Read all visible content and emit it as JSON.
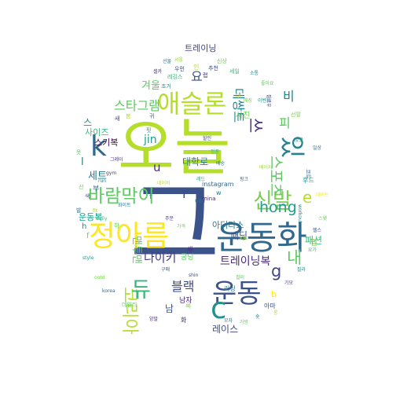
{
  "word_cloud": {
    "words": [
      {
        "text": "오늘",
        "color": "#b5de2b"
      },
      {
        "text": "그",
        "color": "#3b528b"
      },
      {
        "text": "운동화",
        "color": "#31688e"
      },
      {
        "text": "정아름",
        "color": "#fde725"
      },
      {
        "text": "운동",
        "color": "#3b528b"
      },
      {
        "text": "애슬론",
        "color": "#b5de2b"
      },
      {
        "text": "신발",
        "color": "#7ad151"
      },
      {
        "text": "바람막이",
        "color": "#5ec962"
      },
      {
        "text": "있",
        "color": "#26828e"
      },
      {
        "text": "k",
        "color": "#31688e"
      },
      {
        "text": "스포츠",
        "color": "#5ec962"
      },
      {
        "text": "블랙",
        "color": "#3e4989"
      },
      {
        "text": "코리아",
        "color": "#b5de2b"
      },
      {
        "text": "듀",
        "color": "#35b779"
      },
      {
        "text": "스타그램",
        "color": "#5ec962"
      },
      {
        "text": "데쌍트",
        "color": "#26828e"
      },
      {
        "text": "hong",
        "color": "#1f9e89"
      },
      {
        "text": "나이키",
        "color": "#443983"
      },
      {
        "text": "트레이닝복",
        "color": "#472d7b"
      },
      {
        "text": "c",
        "color": "#21918c"
      },
      {
        "text": "쓰",
        "color": "#46327e"
      },
      {
        "text": "내",
        "color": "#5ec962"
      },
      {
        "text": "g",
        "color": "#414487"
      },
      {
        "text": "r",
        "color": "#3e4989"
      },
      {
        "text": "e",
        "color": "#b5de2b"
      },
      {
        "text": "피",
        "color": "#5ec962"
      },
      {
        "text": "비",
        "color": "#26828e"
      },
      {
        "text": "요",
        "color": "#3b528b"
      },
      {
        "text": "jin",
        "color": "#1f9e89"
      },
      {
        "text": "u",
        "color": "#472d7b"
      },
      {
        "text": "겨울",
        "color": "#5ec962"
      },
      {
        "text": "대학로",
        "color": "#26828e"
      },
      {
        "text": "세트",
        "color": "#2a788e"
      },
      {
        "text": "사이즈",
        "color": "#35b779"
      },
      {
        "text": "스키복",
        "color": "#440154"
      },
      {
        "text": "패딩",
        "color": "#3b528b"
      },
      {
        "text": "아디다스",
        "color": "#2a788e"
      },
      {
        "text": "레이스",
        "color": "#3e4989"
      },
      {
        "text": "패션",
        "color": "#35b779"
      },
      {
        "text": "운동복",
        "color": "#1f9e89"
      },
      {
        "text": "남",
        "color": "#3b528b"
      },
      {
        "text": "남자",
        "color": "#482475"
      },
      {
        "text": "맨투맨",
        "color": "#5ec962"
      },
      {
        "text": "팔",
        "color": "#7ad151"
      },
      {
        "text": "스",
        "color": "#21918c"
      },
      {
        "text": "h",
        "color": "#26828e"
      },
      {
        "text": "l",
        "color": "#2a788e"
      },
      {
        "text": "b",
        "color": "#fde725"
      },
      {
        "text": "f",
        "color": "#7ad151"
      },
      {
        "text": "트레이닝",
        "color": "#3e4989"
      },
      {
        "text": "사진",
        "color": "#6ece58"
      },
      {
        "text": "궁딩",
        "color": "#5ec962"
      },
      {
        "text": "instagram",
        "color": "#31688e"
      },
      {
        "text": "um",
        "color": "#2a788e"
      },
      {
        "text": "kfc",
        "color": "#a0da39"
      },
      {
        "text": "세",
        "color": "#472d7b"
      },
      {
        "text": "아마",
        "color": "#3b528b"
      },
      {
        "text": "하",
        "color": "#6ece58"
      },
      {
        "text": "mina",
        "color": "#482878"
      },
      {
        "text": "러닝",
        "color": "#2a788e"
      },
      {
        "text": "추천",
        "color": "#3e4989"
      },
      {
        "text": "세일",
        "color": "#35b779"
      },
      {
        "text": "코트",
        "color": "#31688e"
      },
      {
        "text": "데일리",
        "color": "#5ec962"
      },
      {
        "text": "후드",
        "color": "#21918c"
      },
      {
        "text": "화",
        "color": "#472d7b"
      },
      {
        "text": "룩",
        "color": "#7ad151"
      },
      {
        "text": "부",
        "color": "#31688e"
      },
      {
        "text": "인",
        "color": "#b5de2b"
      },
      {
        "text": "랩",
        "color": "#443983"
      },
      {
        "text": "w",
        "color": "#2a788e"
      },
      {
        "text": "f",
        "color": "#1f9e89"
      },
      {
        "text": "신상",
        "color": "#6ece58"
      },
      {
        "text": "우먼",
        "color": "#3b528b"
      },
      {
        "text": "레깅스",
        "color": "#35b779"
      },
      {
        "text": "조거",
        "color": "#21918c"
      },
      {
        "text": "셀카",
        "color": "#482475"
      },
      {
        "text": "선물",
        "color": "#2a788e"
      },
      {
        "text": "서울",
        "color": "#a0da39"
      },
      {
        "text": "소통",
        "color": "#26828e"
      },
      {
        "text": "좋아요",
        "color": "#5ec962"
      },
      {
        "text": "팔로우",
        "color": "#3e4989"
      },
      {
        "text": "선팔",
        "color": "#7ad151"
      },
      {
        "text": "맞팔",
        "color": "#1f9e89"
      },
      {
        "text": "일상",
        "color": "#31688e"
      },
      {
        "text": "데이트",
        "color": "#fde725"
      },
      {
        "text": "스웻",
        "color": "#6ece58"
      },
      {
        "text": "헬스",
        "color": "#3b528b"
      },
      {
        "text": "요가",
        "color": "#35b779"
      },
      {
        "text": "필라",
        "color": "#21918c"
      },
      {
        "text": "기모",
        "color": "#443983"
      },
      {
        "text": "롱",
        "color": "#b5de2b"
      },
      {
        "text": "숏",
        "color": "#26828e"
      },
      {
        "text": "가방",
        "color": "#5ec962"
      },
      {
        "text": "모자",
        "color": "#2a788e"
      },
      {
        "text": "양말",
        "color": "#472d7b"
      },
      {
        "text": "korea",
        "color": "#31688e"
      },
      {
        "text": "ootd",
        "color": "#7ad151"
      },
      {
        "text": "style",
        "color": "#1f9e89"
      },
      {
        "text": "shin",
        "color": "#3e4989"
      },
      {
        "text": "daily",
        "color": "#35b779"
      },
      {
        "text": "fit",
        "color": "#a0da39"
      },
      {
        "text": "run",
        "color": "#21918c"
      },
      {
        "text": "gym",
        "color": "#443983"
      },
      {
        "text": "workout",
        "color": "#26828e"
      },
      {
        "text": "선",
        "color": "#6ece58"
      },
      {
        "text": "색",
        "color": "#3b528b"
      },
      {
        "text": "옷",
        "color": "#5ec962"
      },
      {
        "text": "발",
        "color": "#2a788e"
      },
      {
        "text": "새",
        "color": "#472d7b"
      },
      {
        "text": "봄",
        "color": "#b5de2b"
      },
      {
        "text": "핏",
        "color": "#1f9e89"
      },
      {
        "text": "귀",
        "color": "#31688e"
      },
      {
        "text": "구",
        "color": "#fde725"
      },
      {
        "text": "매장",
        "color": "#7ad151"
      },
      {
        "text": "이벤트",
        "color": "#21918c"
      },
      {
        "text": "할인",
        "color": "#3e4989"
      },
      {
        "text": "정품",
        "color": "#35b779"
      },
      {
        "text": "배송",
        "color": "#26828e"
      },
      {
        "text": "주문",
        "color": "#443983"
      },
      {
        "text": "가격",
        "color": "#6ece58"
      },
      {
        "text": "구매",
        "color": "#3b528b"
      },
      {
        "text": "컬러",
        "color": "#5ec962"
      },
      {
        "text": "화이트",
        "color": "#2a788e"
      },
      {
        "text": "그레이",
        "color": "#472d7b"
      },
      {
        "text": "네이비",
        "color": "#b5de2b"
      },
      {
        "text": "레드",
        "color": "#1f9e89"
      },
      {
        "text": "핑크",
        "color": "#31688e"
      },
      {
        "text": "베이지",
        "color": "#a0da39"
      }
    ]
  }
}
